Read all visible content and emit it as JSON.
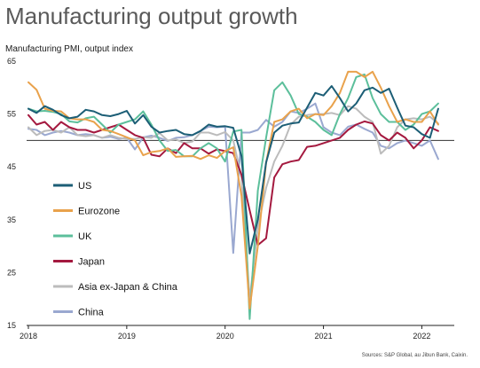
{
  "chart_data": {
    "type": "line",
    "title": "Manufacturing output growth",
    "ylabel": "Manufacturing PMI, output index",
    "source": "Sources: S&P Global, au Jibun Bank, Caixin.",
    "ylim": [
      15,
      65
    ],
    "yticks": [
      15,
      25,
      35,
      45,
      55,
      65
    ],
    "xlim": [
      2018,
      2022.33
    ],
    "xticks": [
      2018,
      2019,
      2020,
      2021,
      2022
    ],
    "reference_line": 50,
    "legend_position": "left",
    "x": [
      2018.0,
      2018.083,
      2018.167,
      2018.25,
      2018.333,
      2018.417,
      2018.5,
      2018.583,
      2018.667,
      2018.75,
      2018.833,
      2018.917,
      2019.0,
      2019.083,
      2019.167,
      2019.25,
      2019.333,
      2019.417,
      2019.5,
      2019.583,
      2019.667,
      2019.75,
      2019.833,
      2019.917,
      2020.0,
      2020.083,
      2020.167,
      2020.25,
      2020.333,
      2020.417,
      2020.5,
      2020.583,
      2020.667,
      2020.75,
      2020.833,
      2020.917,
      2021.0,
      2021.083,
      2021.167,
      2021.25,
      2021.333,
      2021.417,
      2021.5,
      2021.583,
      2021.667,
      2021.75,
      2021.833,
      2021.917,
      2022.0,
      2022.083,
      2022.167
    ],
    "series": [
      {
        "name": "US",
        "color": "#1c5e76",
        "values": [
          56.0,
          55.2,
          56.5,
          55.8,
          54.8,
          54.2,
          54.5,
          55.8,
          55.5,
          54.8,
          54.6,
          55.0,
          55.6,
          53.2,
          54.8,
          52.6,
          51.5,
          51.8,
          52.0,
          51.2,
          51.0,
          51.8,
          53.0,
          52.6,
          52.7,
          52.4,
          47.0,
          28.6,
          35.0,
          45.8,
          51.5,
          52.8,
          53.2,
          53.4,
          56.2,
          59.0,
          58.5,
          60.3,
          58.0,
          55.5,
          57.0,
          59.5,
          60.0,
          59.0,
          59.8,
          56.2,
          52.8,
          52.5,
          51.2,
          50.5,
          56.0
        ]
      },
      {
        "name": "Eurozone",
        "color": "#e9a24c",
        "values": [
          61.0,
          59.6,
          56.0,
          55.6,
          55.5,
          54.2,
          54.0,
          54.0,
          53.5,
          52.0,
          51.8,
          51.2,
          50.6,
          50.0,
          47.2,
          47.8,
          48.0,
          48.5,
          46.9,
          47.0,
          47.1,
          46.5,
          47.2,
          46.7,
          48.0,
          48.7,
          39.5,
          18.2,
          30.0,
          45.8,
          53.5,
          54.0,
          55.5,
          56.0,
          54.2,
          55.0,
          54.8,
          56.5,
          59.0,
          63.0,
          63.0,
          62.0,
          63.0,
          60.0,
          56.5,
          53.5,
          54.0,
          53.5,
          53.5,
          55.5,
          53.0
        ]
      },
      {
        "name": "UK",
        "color": "#5cbf9b",
        "values": [
          56.0,
          55.5,
          55.6,
          55.4,
          55.0,
          53.6,
          53.4,
          54.2,
          54.5,
          53.0,
          51.5,
          53.0,
          53.5,
          54.0,
          55.5,
          53.0,
          50.0,
          48.0,
          48.2,
          47.0,
          47.0,
          48.5,
          49.5,
          48.5,
          46.0,
          51.7,
          52.0,
          16.2,
          40.5,
          50.5,
          59.5,
          61.0,
          58.5,
          55.0,
          54.5,
          53.5,
          52.0,
          51.0,
          55.0,
          58.0,
          62.0,
          62.5,
          58.0,
          55.0,
          53.5,
          53.5,
          52.0,
          53.0,
          55.0,
          55.5,
          57.0
        ]
      },
      {
        "name": "Japan",
        "color": "#a4193f",
        "values": [
          54.8,
          53.0,
          53.5,
          52.0,
          53.5,
          52.5,
          52.0,
          52.0,
          51.5,
          52.0,
          52.5,
          53.0,
          52.0,
          51.0,
          50.5,
          47.3,
          47.0,
          48.5,
          47.6,
          49.5,
          48.5,
          48.5,
          47.5,
          48.3,
          48.0,
          47.6,
          43.5,
          36.8,
          30.2,
          31.5,
          43.0,
          45.5,
          46.0,
          46.3,
          48.8,
          49.0,
          49.5,
          50.0,
          50.5,
          52.0,
          53.0,
          53.6,
          53.2,
          51.0,
          50.0,
          51.5,
          50.5,
          48.5,
          50.0,
          52.5,
          51.8
        ]
      },
      {
        "name": "Asia ex-Japan & China",
        "color": "#bcbcbc",
        "values": [
          52.5,
          51.0,
          51.8,
          52.0,
          51.5,
          52.5,
          51.0,
          50.8,
          51.0,
          50.5,
          51.0,
          50.5,
          50.3,
          50.3,
          50.6,
          50.5,
          51.4,
          50.0,
          50.2,
          49.5,
          49.8,
          51.5,
          51.5,
          51.0,
          51.6,
          50.0,
          43.0,
          20.0,
          33.5,
          41.0,
          46.0,
          49.0,
          53.0,
          54.5,
          54.8,
          55.0,
          55.0,
          55.2,
          54.8,
          56.5,
          56.0,
          54.5,
          53.5,
          47.5,
          49.0,
          52.5,
          54.0,
          54.2,
          54.0,
          54.5,
          53.2
        ]
      },
      {
        "name": "China",
        "color": "#9aa8d0",
        "values": [
          52.2,
          52.0,
          51.0,
          51.5,
          51.8,
          51.5,
          51.0,
          51.2,
          51.0,
          50.5,
          50.7,
          50.3,
          50.5,
          48.3,
          50.6,
          50.9,
          50.5,
          49.9,
          50.5,
          50.6,
          51.0,
          51.8,
          52.6,
          52.5,
          52.6,
          28.7,
          51.5,
          51.5,
          52.0,
          53.9,
          52.6,
          53.5,
          55.5,
          55.2,
          56.0,
          57.0,
          52.5,
          51.5,
          51.0,
          52.6,
          53.0,
          52.2,
          51.5,
          49.0,
          48.5,
          49.5,
          50.0,
          49.5,
          49.0,
          50.0,
          46.5
        ]
      }
    ]
  }
}
